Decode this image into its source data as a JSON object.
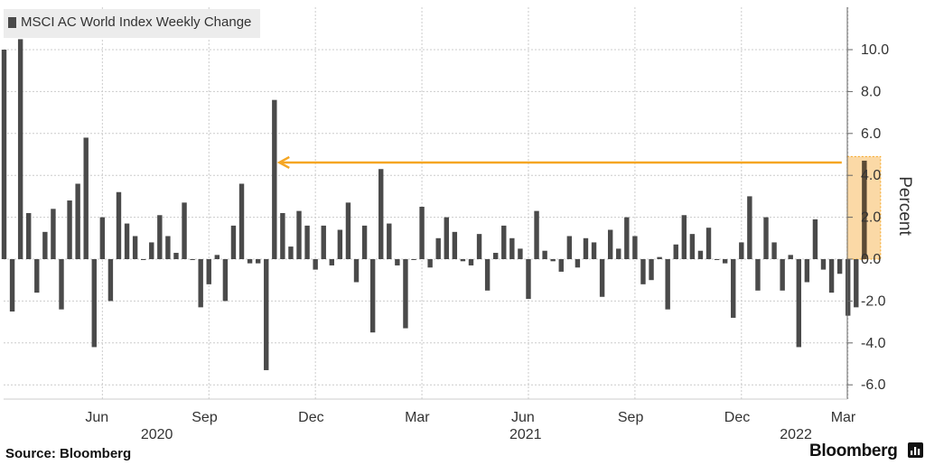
{
  "legend": {
    "label": "MSCI AC World Index Weekly Change"
  },
  "footer": {
    "source": "Source: Bloomberg",
    "brand": "Bloomberg"
  },
  "colors": {
    "bar": "#4a4a4a",
    "highlight_bar": "#5a4a35",
    "arrow": "#f5a623",
    "highlight_fill": "#fbd9a6",
    "grid": "#cccccc"
  },
  "chart_data": {
    "type": "bar",
    "title": "MSCI AC World Index Weekly Change",
    "ylabel": "Percent",
    "ylim": [
      -6.0,
      12.0
    ],
    "yticks": [
      "10.0",
      "8.0",
      "6.0",
      "4.0",
      "2.0",
      "0.0",
      "-2.0",
      "-4.0",
      "-6.0"
    ],
    "ytick_values": [
      10,
      8,
      6,
      4,
      2,
      0,
      -2,
      -4,
      -6
    ],
    "x_month_labels": [
      {
        "label": "Jun",
        "week": 12
      },
      {
        "label": "Sep",
        "week": 25
      },
      {
        "label": "Dec",
        "week": 38
      },
      {
        "label": "Mar",
        "week": 51
      },
      {
        "label": "Jun",
        "week": 64
      },
      {
        "label": "Sep",
        "week": 77
      },
      {
        "label": "Dec",
        "week": 90
      },
      {
        "label": "Mar",
        "week": 103
      }
    ],
    "x_year_labels": [
      {
        "label": "2020",
        "week": 19
      },
      {
        "label": "2021",
        "week": 64
      },
      {
        "label": "2022",
        "week": 97
      }
    ],
    "series": [
      {
        "values": [
          10.0,
          -2.5,
          10.5,
          2.2,
          -1.6,
          1.3,
          2.4,
          -2.4,
          2.8,
          3.6,
          5.8,
          -4.2,
          2.0,
          -2.0,
          3.2,
          1.7,
          1.1,
          0.0,
          0.8,
          2.1,
          1.1,
          0.3,
          2.7,
          0.0,
          -2.3,
          -1.2,
          0.2,
          -2.0,
          1.6,
          3.6,
          -0.2,
          -0.2,
          -5.3,
          7.6,
          2.2,
          0.6,
          2.3,
          1.6,
          -0.5,
          1.6,
          -0.3,
          1.4,
          2.7,
          -1.1,
          1.6,
          -3.5,
          4.3,
          1.7,
          -0.3,
          -3.3,
          0.0,
          2.5,
          -0.4,
          1.0,
          2.0,
          1.3,
          -0.1,
          -0.3,
          1.2,
          -1.5,
          0.3,
          1.6,
          1.0,
          0.5,
          -1.9,
          2.3,
          0.4,
          -0.1,
          -0.6,
          1.1,
          -0.4,
          1.0,
          0.8,
          -1.8,
          1.4,
          0.5,
          2.0,
          1.1,
          -1.2,
          -1.0,
          0.1,
          -2.4,
          0.7,
          2.1,
          1.2,
          0.4,
          1.5,
          0.0,
          -0.2,
          -2.8,
          0.8,
          3.0,
          -1.5,
          2.0,
          0.8,
          -1.5,
          0.2,
          -4.2,
          -1.1,
          1.9,
          -0.5,
          -1.6,
          -0.7,
          -2.7,
          -2.3,
          4.7
        ],
        "highlight_index": 105
      }
    ],
    "annotation": {
      "type": "arrow",
      "from_week": 105,
      "to_week": 33.6,
      "value": 4.7
    },
    "grid": true,
    "y_axis_position": "right",
    "legend_position": "top-left"
  }
}
